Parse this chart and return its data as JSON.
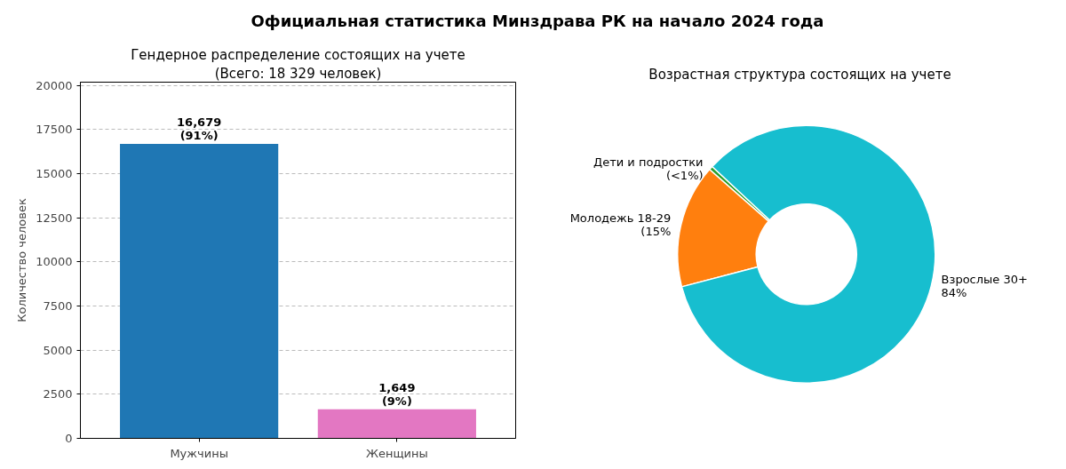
{
  "chart_data": [
    {
      "type": "bar",
      "title": "Гендерное распределение состоящих на учете",
      "subtitle": "(Всего: 18 329 человек)",
      "ylabel": "Количество человек",
      "annotations": [
        "Официальная статистика Минздрава РК на начало 2024 года"
      ],
      "categories": [
        "Мужчины",
        "Женщины"
      ],
      "values": [
        16679,
        1649
      ],
      "colors": [
        "#1f77b4",
        "#e377c2"
      ],
      "value_labels": [
        "16,679\n(91%)",
        "1,649\n(9%)"
      ],
      "ylim": [
        0,
        20180
      ],
      "yticks": [
        0,
        2500,
        5000,
        7500,
        10000,
        12500,
        15000,
        17500,
        20000
      ],
      "grid": "y"
    },
    {
      "type": "donut",
      "title": "Возрастная структура состоящих на учете",
      "categories": [
        "Дети и подростки",
        "Молодежь 18-29",
        "Взрослые 30+"
      ],
      "values": [
        0.5,
        15.5,
        84
      ],
      "colors": [
        "#2ca02c",
        "#ff7f0e",
        "#17becf"
      ],
      "value_labels": [
        "(<1%)",
        "(15%",
        "84%"
      ]
    }
  ]
}
